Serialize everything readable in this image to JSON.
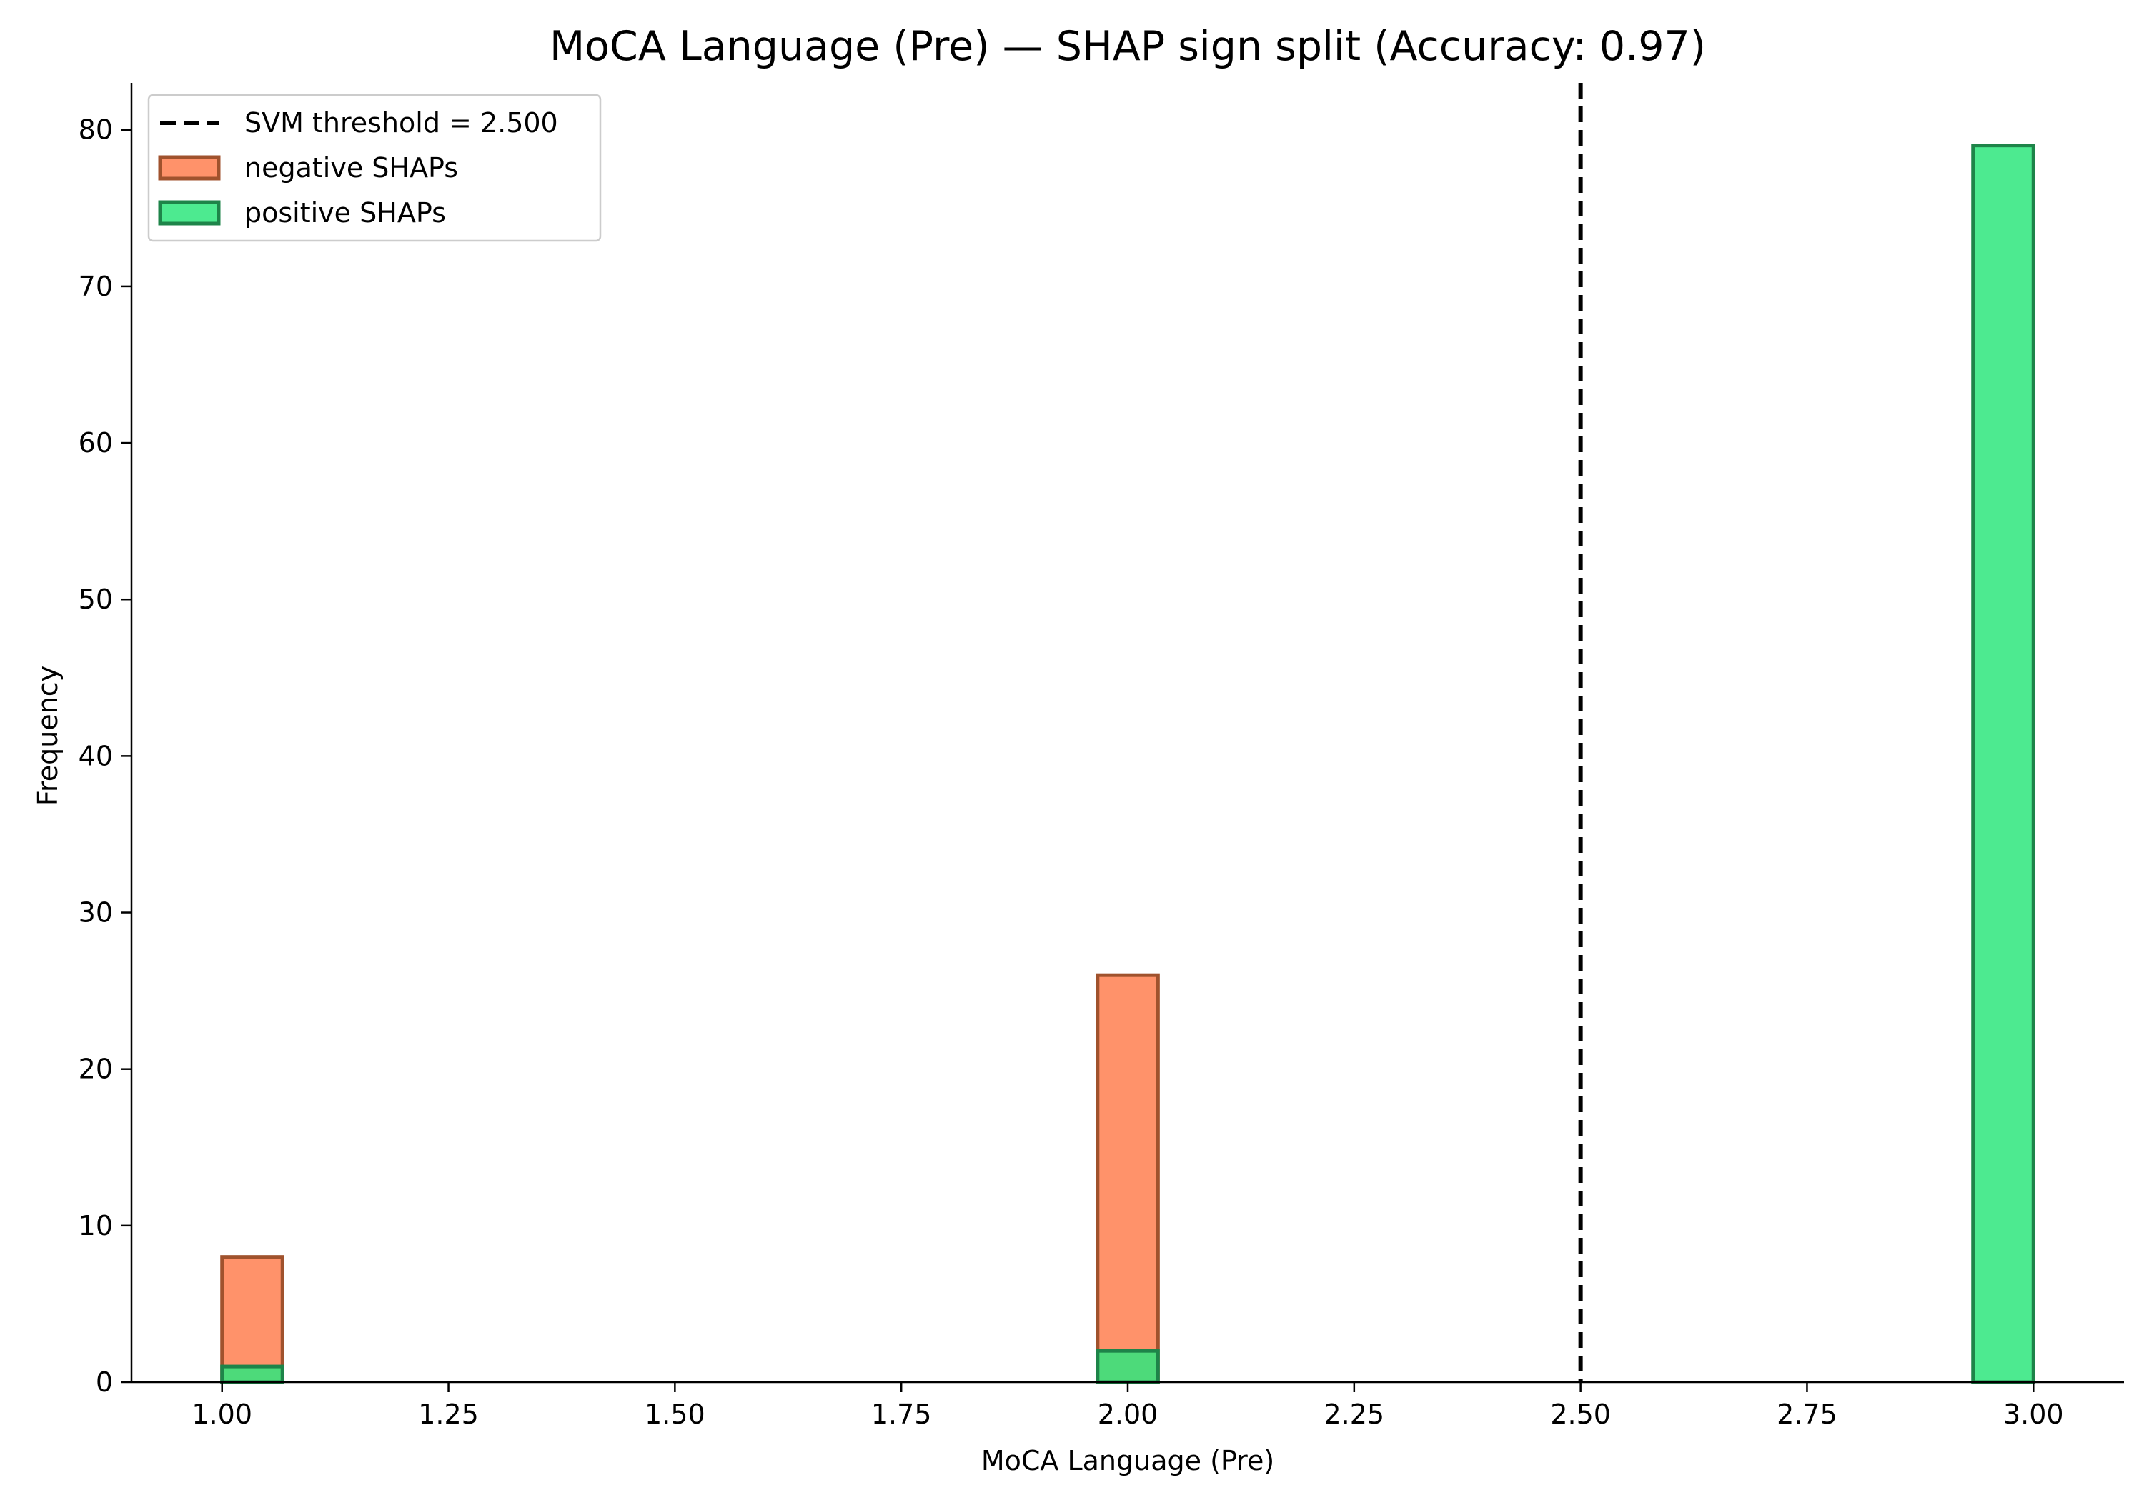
{
  "chart_data": {
    "type": "bar",
    "title": "MoCA Language (Pre) — SHAP sign split (Accuracy: 0.97)",
    "xlabel": "MoCA Language (Pre)",
    "ylabel": "Frequency",
    "xlim": [
      0.9,
      3.1
    ],
    "ylim": [
      0,
      83
    ],
    "xticks": [
      "1.00",
      "1.25",
      "1.50",
      "1.75",
      "2.00",
      "2.25",
      "2.50",
      "2.75",
      "3.00"
    ],
    "yticks": [
      "0",
      "10",
      "20",
      "30",
      "40",
      "50",
      "60",
      "70",
      "80"
    ],
    "bin_width": 0.0667,
    "series": [
      {
        "name": "negative SHAPs",
        "fill": "#ff7f50",
        "stroke": "#a0522d",
        "bins": [
          {
            "x_start": 1.0,
            "count": 8
          },
          {
            "x_start": 1.9667,
            "count": 26
          }
        ]
      },
      {
        "name": "positive SHAPs",
        "fill": "#2ee67d",
        "stroke": "#1e8449",
        "bins": [
          {
            "x_start": 1.0,
            "count": 1
          },
          {
            "x_start": 1.9667,
            "count": 2
          },
          {
            "x_start": 2.9333,
            "count": 79
          }
        ]
      }
    ],
    "threshold": {
      "label": "SVM threshold = 2.500",
      "x": 2.5
    },
    "legend": {
      "position": "top-left",
      "grid": false
    }
  }
}
